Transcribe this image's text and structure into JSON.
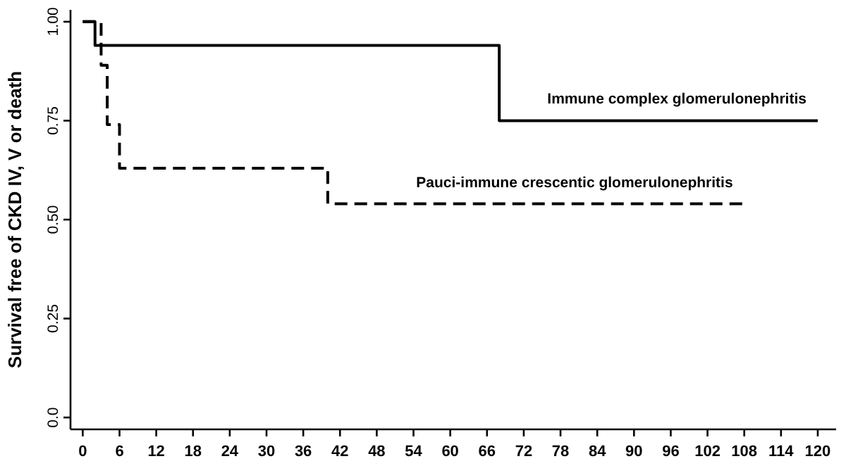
{
  "chart_data": {
    "type": "step",
    "ylabel": "Survival free of CKD IV, V or death",
    "xlim": [
      -2,
      123
    ],
    "ylim": [
      -0.03,
      1.03
    ],
    "xticks": [
      0,
      6,
      12,
      18,
      24,
      30,
      36,
      42,
      48,
      54,
      60,
      66,
      72,
      78,
      84,
      90,
      96,
      102,
      108,
      114,
      120
    ],
    "yticks": [
      {
        "value": 0,
        "label": "0.0"
      },
      {
        "value": 0.25,
        "label": "0.25"
      },
      {
        "value": 0.5,
        "label": "0.50"
      },
      {
        "value": 0.75,
        "label": "0.75"
      },
      {
        "value": 1,
        "label": "1.00"
      }
    ],
    "grid": false,
    "series": [
      {
        "name": "Immune complex glomerulonephritis",
        "color": "#000000",
        "line_style": "solid",
        "x": [
          0,
          2,
          68,
          120
        ],
        "values": [
          1,
          0.94,
          0.75,
          0.75
        ]
      },
      {
        "name": "Pauci-immune crescentic glomerulonephritis",
        "color": "#000000",
        "line_style": "dashed",
        "x": [
          0,
          3,
          4,
          6,
          40,
          108
        ],
        "values": [
          1,
          0.89,
          0.74,
          0.63,
          0.54,
          0.54
        ]
      }
    ]
  }
}
